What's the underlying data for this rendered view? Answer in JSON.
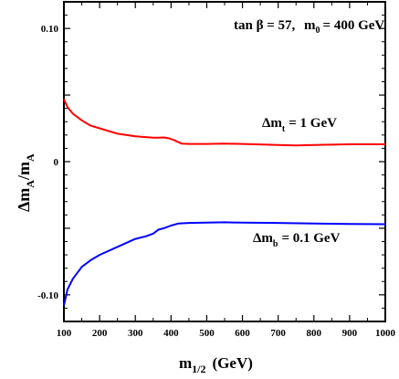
{
  "chart_data": {
    "type": "line",
    "title": "tan β = 57, m₀ = 400 GeV",
    "title_parts": {
      "tan": "tan β = 57,",
      "m": "m",
      "sub": "0",
      "rest": "= 400 GeV"
    },
    "xlabel": "m1/2 (GeV)",
    "xlabel_parts": {
      "main": "m",
      "sub": "1/2",
      "unit": "(GeV)"
    },
    "ylabel": "Δm_A/m_A",
    "ylabel_parts": {
      "delta": "Δm",
      "sub1": "A",
      "slash": "/m",
      "sub2": "A"
    },
    "xlim": [
      100,
      1000
    ],
    "ylim": [
      -0.12,
      0.12
    ],
    "x_ticks": [
      100,
      200,
      300,
      400,
      500,
      600,
      700,
      800,
      900,
      1000
    ],
    "y_ticks_labeled": [
      {
        "value": 0.1,
        "label": "0.10"
      },
      {
        "value": 0.0,
        "label": "0"
      },
      {
        "value": -0.1,
        "label": "-0.10"
      }
    ],
    "grid": false,
    "series": [
      {
        "name": "Δm_t = 1 GeV",
        "label_parts": {
          "delta": "Δm",
          "sub": "t",
          "rest": "= 1 GeV"
        },
        "color": "#ff0000",
        "x": [
          100,
          110,
          125,
          150,
          175,
          200,
          250,
          300,
          350,
          365,
          380,
          395,
          410,
          430,
          450,
          500,
          550,
          600,
          700,
          750,
          800,
          900,
          1000
        ],
        "y": [
          0.047,
          0.041,
          0.036,
          0.031,
          0.027,
          0.025,
          0.021,
          0.019,
          0.018,
          0.018,
          0.0182,
          0.0175,
          0.016,
          0.0135,
          0.0133,
          0.0133,
          0.0135,
          0.0133,
          0.0125,
          0.0122,
          0.0125,
          0.013,
          0.013
        ]
      },
      {
        "name": "Δm_b = 0.1 GeV",
        "label_parts": {
          "delta": "Δm",
          "sub": "b",
          "rest": "= 0.1 GeV"
        },
        "color": "#0000ff",
        "x": [
          100,
          110,
          125,
          150,
          175,
          200,
          250,
          300,
          330,
          350,
          365,
          380,
          400,
          420,
          450,
          500,
          550,
          600,
          700,
          800,
          900,
          1000
        ],
        "y": [
          -0.108,
          -0.096,
          -0.088,
          -0.079,
          -0.074,
          -0.07,
          -0.064,
          -0.058,
          -0.056,
          -0.054,
          -0.051,
          -0.05,
          -0.048,
          -0.0465,
          -0.046,
          -0.0458,
          -0.0455,
          -0.0458,
          -0.046,
          -0.0465,
          -0.0468,
          -0.047
        ]
      }
    ]
  }
}
